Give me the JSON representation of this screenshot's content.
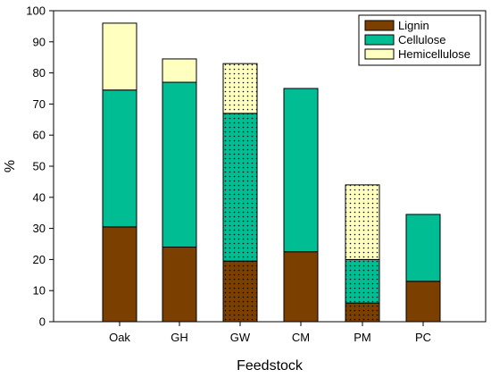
{
  "chart_data": {
    "type": "bar",
    "stacked": true,
    "title": "",
    "xlabel": "Feedstock",
    "ylabel": "%",
    "ylim": [
      0,
      100
    ],
    "yticks": [
      0,
      10,
      20,
      30,
      40,
      50,
      60,
      70,
      80,
      90,
      100
    ],
    "categories": [
      "Oak",
      "GH",
      "GW",
      "CM",
      "PM",
      "PC"
    ],
    "dotted_categories": [
      "GW",
      "PM"
    ],
    "grid": false,
    "legend_position": "top-right",
    "series": [
      {
        "name": "Lignin",
        "color": "#7b3f00",
        "values": [
          30.5,
          24,
          19.5,
          22.5,
          6,
          13
        ]
      },
      {
        "name": "Cellulose",
        "color": "#00bd94",
        "values": [
          44,
          53,
          47.5,
          52.5,
          14,
          21.5
        ]
      },
      {
        "name": "Hemicellulose",
        "color": "#ffffc0",
        "values": [
          21.5,
          7.5,
          16,
          0,
          24,
          0
        ]
      }
    ]
  }
}
